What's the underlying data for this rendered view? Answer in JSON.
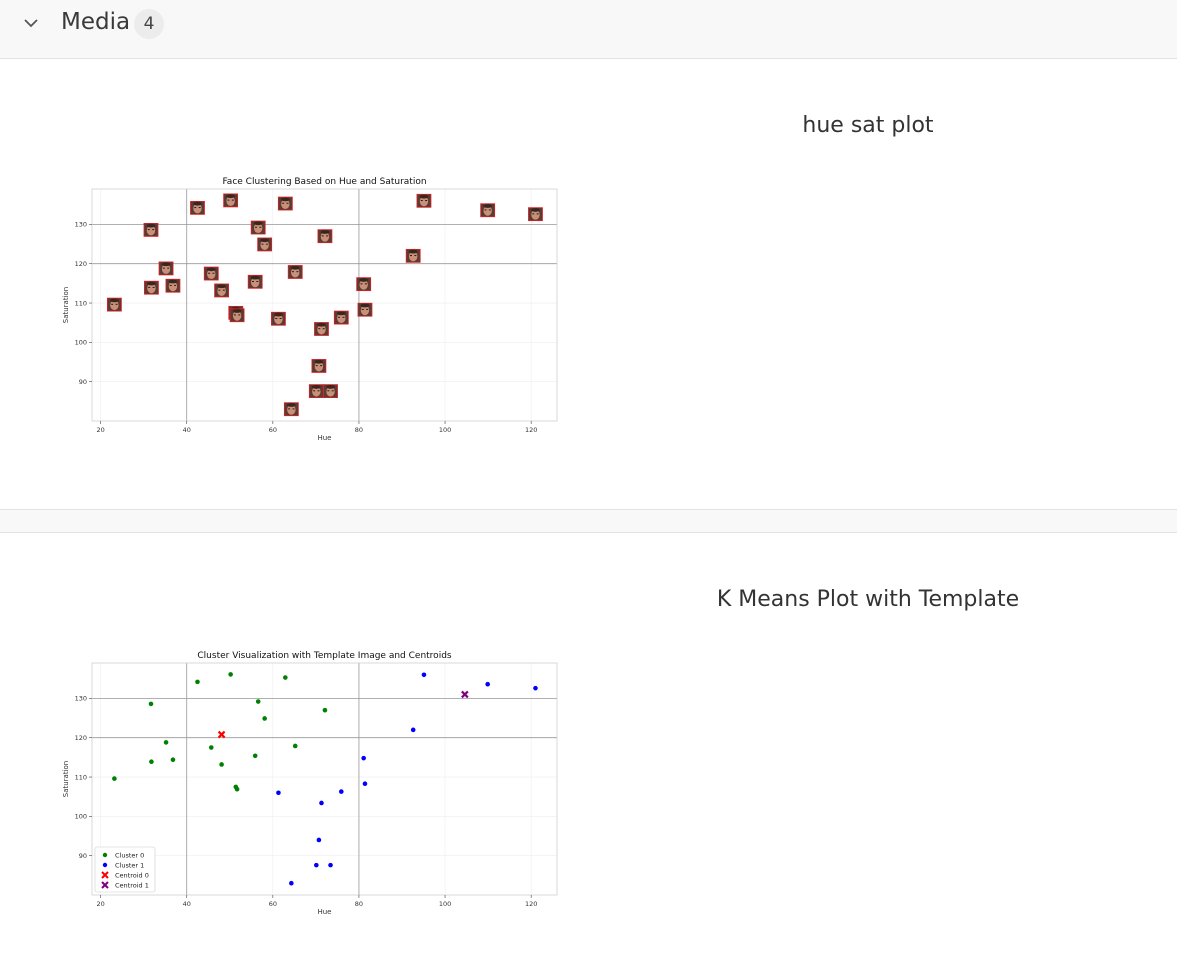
{
  "header": {
    "title": "Media",
    "count": "4"
  },
  "panels": [
    {
      "title": "hue sat plot"
    },
    {
      "title": "K Means Plot with Template"
    }
  ],
  "chart_data": [
    {
      "type": "scatter",
      "title": "Face Clustering Based on Hue and Saturation",
      "xlabel": "Hue",
      "ylabel": "Saturation",
      "xlim": [
        18,
        126
      ],
      "ylim": [
        80,
        139
      ],
      "xticks": [
        20,
        40,
        60,
        80,
        100,
        120
      ],
      "yticks": [
        90,
        100,
        110,
        120,
        130
      ],
      "grid_lines_x": [
        40,
        80
      ],
      "grid_lines_y": [
        120,
        130
      ],
      "marker": "face-thumbnail",
      "points": [
        {
          "x": 23.2,
          "y": 109.6
        },
        {
          "x": 31.7,
          "y": 128.6
        },
        {
          "x": 31.8,
          "y": 113.9
        },
        {
          "x": 35.2,
          "y": 118.8
        },
        {
          "x": 36.8,
          "y": 114.4
        },
        {
          "x": 42.5,
          "y": 134.2
        },
        {
          "x": 45.7,
          "y": 117.5
        },
        {
          "x": 48.1,
          "y": 113.2
        },
        {
          "x": 50.2,
          "y": 136.1
        },
        {
          "x": 51.4,
          "y": 107.5
        },
        {
          "x": 51.7,
          "y": 106.9
        },
        {
          "x": 55.9,
          "y": 115.4
        },
        {
          "x": 56.6,
          "y": 129.2
        },
        {
          "x": 58.1,
          "y": 124.9
        },
        {
          "x": 61.3,
          "y": 106.0
        },
        {
          "x": 62.9,
          "y": 135.3
        },
        {
          "x": 64.3,
          "y": 83.0
        },
        {
          "x": 65.2,
          "y": 117.9
        },
        {
          "x": 70.1,
          "y": 87.6
        },
        {
          "x": 70.7,
          "y": 94.0
        },
        {
          "x": 71.3,
          "y": 103.4
        },
        {
          "x": 72.1,
          "y": 127.0
        },
        {
          "x": 73.4,
          "y": 87.6
        },
        {
          "x": 75.9,
          "y": 106.3
        },
        {
          "x": 81.1,
          "y": 114.8
        },
        {
          "x": 81.4,
          "y": 108.3
        },
        {
          "x": 92.6,
          "y": 122.0
        },
        {
          "x": 95.1,
          "y": 136.0
        },
        {
          "x": 109.9,
          "y": 133.6
        },
        {
          "x": 121.0,
          "y": 132.6
        }
      ]
    },
    {
      "type": "scatter",
      "title": "Cluster Visualization with Template Image and Centroids",
      "xlabel": "Hue",
      "ylabel": "Saturation",
      "xlim": [
        18,
        126
      ],
      "ylim": [
        80,
        139
      ],
      "xticks": [
        20,
        40,
        60,
        80,
        100,
        120
      ],
      "yticks": [
        90,
        100,
        110,
        120,
        130
      ],
      "grid_lines_x": [
        40,
        80
      ],
      "grid_lines_y": [
        120,
        130
      ],
      "legend_position": "lower-left",
      "series": [
        {
          "name": "Cluster 0",
          "color": "#008000",
          "marker": "circle",
          "points": [
            {
              "x": 23.2,
              "y": 109.6
            },
            {
              "x": 31.7,
              "y": 128.6
            },
            {
              "x": 31.8,
              "y": 113.9
            },
            {
              "x": 35.2,
              "y": 118.8
            },
            {
              "x": 36.8,
              "y": 114.4
            },
            {
              "x": 42.5,
              "y": 134.2
            },
            {
              "x": 45.7,
              "y": 117.5
            },
            {
              "x": 48.1,
              "y": 113.2
            },
            {
              "x": 50.2,
              "y": 136.1
            },
            {
              "x": 51.4,
              "y": 107.5
            },
            {
              "x": 51.7,
              "y": 106.9
            },
            {
              "x": 55.9,
              "y": 115.4
            },
            {
              "x": 56.6,
              "y": 129.2
            },
            {
              "x": 58.1,
              "y": 124.9
            },
            {
              "x": 62.9,
              "y": 135.3
            },
            {
              "x": 65.2,
              "y": 117.9
            },
            {
              "x": 72.1,
              "y": 127.0
            }
          ]
        },
        {
          "name": "Cluster 1",
          "color": "#0000ff",
          "marker": "circle",
          "points": [
            {
              "x": 61.3,
              "y": 106.0
            },
            {
              "x": 64.3,
              "y": 83.0
            },
            {
              "x": 70.1,
              "y": 87.6
            },
            {
              "x": 70.7,
              "y": 94.0
            },
            {
              "x": 71.3,
              "y": 103.4
            },
            {
              "x": 73.4,
              "y": 87.6
            },
            {
              "x": 75.9,
              "y": 106.3
            },
            {
              "x": 81.1,
              "y": 114.8
            },
            {
              "x": 81.4,
              "y": 108.3
            },
            {
              "x": 92.6,
              "y": 122.0
            },
            {
              "x": 95.1,
              "y": 136.0
            },
            {
              "x": 109.9,
              "y": 133.6
            },
            {
              "x": 121.0,
              "y": 132.6
            }
          ]
        },
        {
          "name": "Centroid 0",
          "color": "#ff0000",
          "marker": "x",
          "points": [
            {
              "x": 48.1,
              "y": 120.8
            }
          ]
        },
        {
          "name": "Centroid 1",
          "color": "#800080",
          "marker": "x",
          "points": [
            {
              "x": 104.6,
              "y": 131.0
            }
          ]
        }
      ]
    }
  ]
}
